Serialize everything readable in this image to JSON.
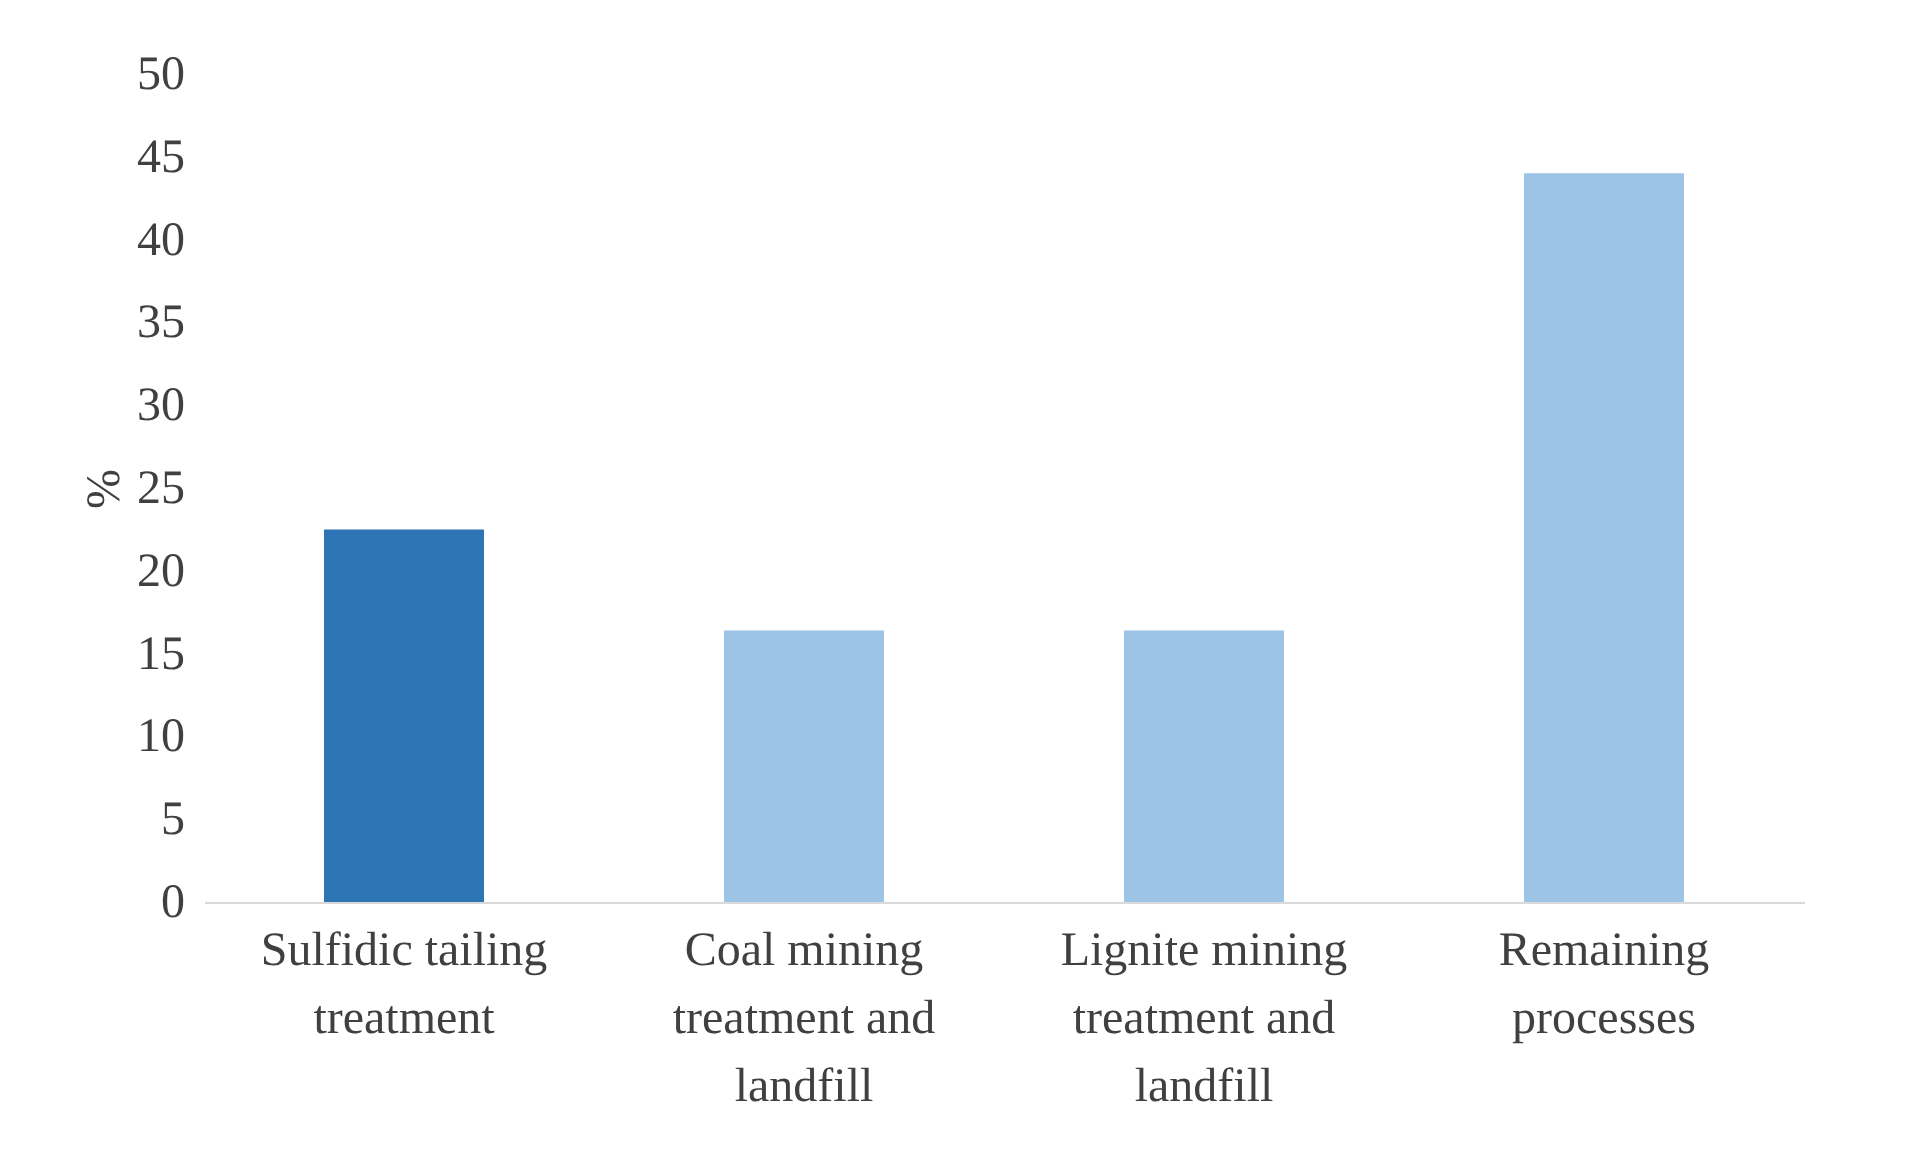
{
  "chart_data": {
    "type": "bar",
    "ylabel": "%",
    "categories": [
      "Sulfidic tailing\ntreatment",
      "Coal mining\ntreatment and\nlandfill",
      "Lignite mining\ntreatment and\nlandfill",
      "Remaining\nprocesses"
    ],
    "values": [
      22.5,
      16.4,
      16.4,
      44.0
    ],
    "colors": [
      "#2e75b6",
      "#9dc3e6",
      "#9dc3e6",
      "#9dc3e6"
    ],
    "ylim": [
      0,
      50
    ],
    "yticks": [
      0,
      5,
      10,
      15,
      20,
      25,
      30,
      35,
      40,
      45,
      50
    ],
    "grid": false
  }
}
